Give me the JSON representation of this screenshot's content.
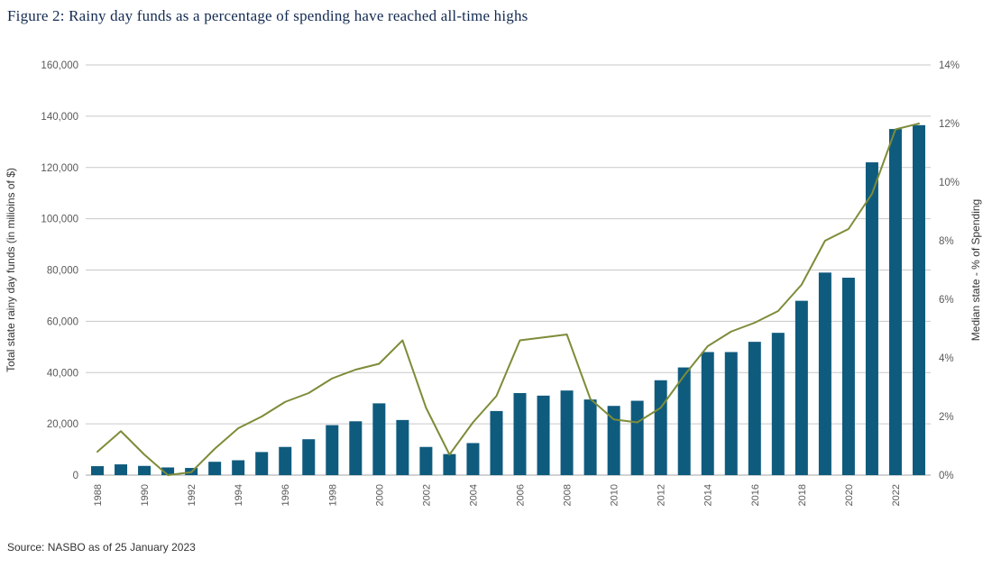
{
  "title": "Figure 2: Rainy day funds as a percentage of spending have reached all-time highs",
  "source": "Source: NASBO as of 25 January 2023",
  "colors": {
    "bar": "#0f5b7e",
    "line": "#7d8c38",
    "grid": "#c9c9c9",
    "baseline": "#a6a6a6",
    "axis_text": "#595959",
    "axis_title_text": "#333333",
    "title_text": "#132a52"
  },
  "chart_data": {
    "type": "bar",
    "subtype": "bar+line dual axis",
    "title": "Figure 2: Rainy day funds as a percentage of spending have reached all-time highs",
    "x": [
      1988,
      1989,
      1990,
      1991,
      1992,
      1993,
      1994,
      1995,
      1996,
      1997,
      1998,
      1999,
      2000,
      2001,
      2002,
      2003,
      2004,
      2005,
      2006,
      2007,
      2008,
      2009,
      2010,
      2011,
      2012,
      2013,
      2014,
      2015,
      2016,
      2017,
      2018,
      2019,
      2020,
      2021,
      2022,
      2023
    ],
    "x_tick_every": 2,
    "x_tick_labels": [
      "1988",
      "1990",
      "1992",
      "1994",
      "1996",
      "1998",
      "2000",
      "2002",
      "2004",
      "2006",
      "2008",
      "2010",
      "2012",
      "2014",
      "2016",
      "2018",
      "2020",
      "2022"
    ],
    "series": [
      {
        "name": "Total state rainy day funds",
        "type": "bar",
        "axis": "left",
        "values": [
          3500,
          4200,
          3600,
          3000,
          2800,
          5200,
          5800,
          9000,
          11000,
          14000,
          19500,
          21000,
          28000,
          21500,
          11000,
          8200,
          12500,
          25000,
          32000,
          31000,
          33000,
          29500,
          27000,
          29000,
          37000,
          42000,
          48000,
          48000,
          52000,
          55500,
          68000,
          79000,
          77000,
          122000,
          135000,
          136500
        ]
      },
      {
        "name": "Median state - % of Spending",
        "type": "line",
        "axis": "right",
        "values": [
          0.8,
          1.5,
          0.7,
          0.0,
          0.1,
          0.9,
          1.6,
          2.0,
          2.5,
          2.8,
          3.3,
          3.6,
          3.8,
          4.6,
          2.3,
          0.7,
          1.8,
          2.7,
          4.6,
          4.7,
          4.8,
          2.6,
          1.9,
          1.8,
          2.3,
          3.4,
          4.4,
          4.9,
          5.2,
          5.6,
          6.5,
          8.0,
          8.4,
          9.6,
          11.8,
          12.0
        ]
      }
    ],
    "left_axis": {
      "label": "Total state rainy day funds (in milioins of $)",
      "min": 0,
      "max": 160000,
      "step": 20000
    },
    "right_axis": {
      "label": "Median state  - % of Spending",
      "min": 0,
      "max": 14,
      "step": 2,
      "suffix": "%"
    },
    "grid": true,
    "legend_position": "none"
  }
}
